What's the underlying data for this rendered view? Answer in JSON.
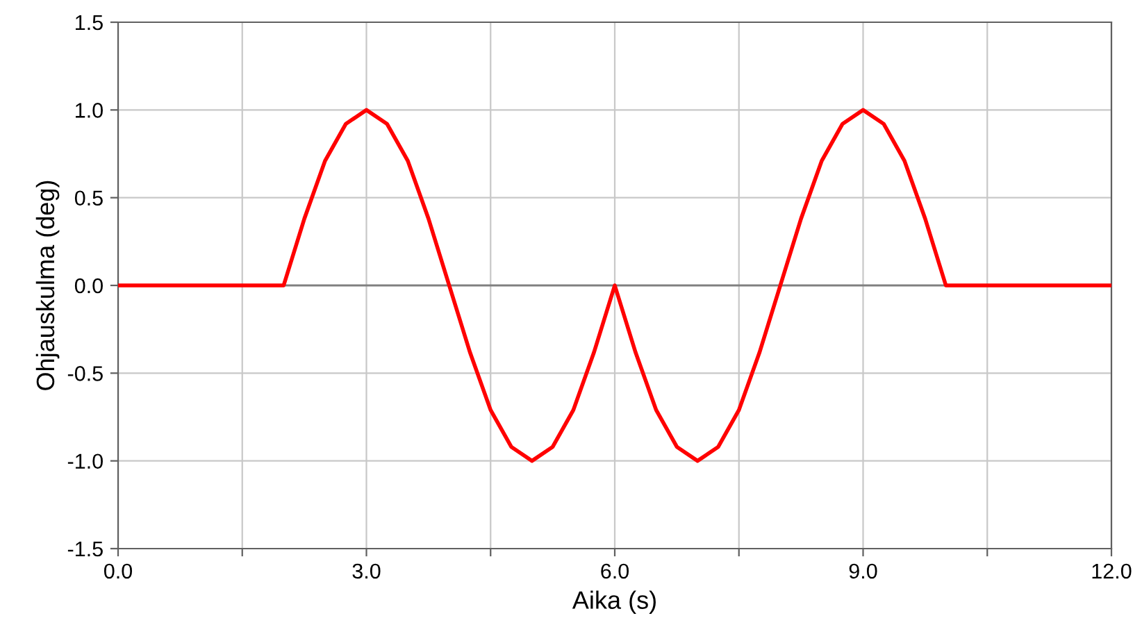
{
  "chart_data": {
    "type": "line",
    "xlabel": "Aika (s)",
    "ylabel": "Ohjauskulma (deg)",
    "x": [
      0,
      2,
      2.25,
      2.5,
      2.75,
      3,
      3.25,
      3.5,
      3.75,
      4,
      4.25,
      4.5,
      4.75,
      5,
      5.25,
      5.5,
      5.75,
      6,
      6.25,
      6.5,
      6.75,
      7,
      7.25,
      7.5,
      7.75,
      8,
      8.25,
      8.5,
      8.75,
      9,
      9.25,
      9.5,
      9.75,
      10,
      12
    ],
    "series": [
      {
        "color": "#ff0000",
        "values": [
          0,
          0,
          0.38,
          0.71,
          0.92,
          1,
          0.92,
          0.71,
          0.38,
          0,
          -0.38,
          -0.71,
          -0.92,
          -1,
          -0.92,
          -0.71,
          -0.38,
          0,
          -0.38,
          -0.71,
          -0.92,
          -1,
          -0.92,
          -0.71,
          -0.38,
          0,
          0.38,
          0.71,
          0.92,
          1,
          0.92,
          0.71,
          0.38,
          0,
          0
        ]
      }
    ],
    "xlim": [
      0,
      12
    ],
    "xticks": [
      {
        "value": 0,
        "label": "0.0"
      },
      {
        "value": 1.5,
        "label": null
      },
      {
        "value": 3,
        "label": "3.0"
      },
      {
        "value": 4.5,
        "label": null
      },
      {
        "value": 6,
        "label": "6.0"
      },
      {
        "value": 7.5,
        "label": null
      },
      {
        "value": 9,
        "label": "9.0"
      },
      {
        "value": 10.5,
        "label": null
      },
      {
        "value": 12,
        "label": "12.0"
      }
    ],
    "ylim": [
      -1.5,
      1.5
    ],
    "yticks": [
      {
        "value": -1.5,
        "label": "-1.5"
      },
      {
        "value": -1,
        "label": "-1.0"
      },
      {
        "value": -0.5,
        "label": "-0.5"
      },
      {
        "value": 0,
        "label": "0.0"
      },
      {
        "value": 0.5,
        "label": "0.5"
      },
      {
        "value": 1,
        "label": "1.0"
      },
      {
        "value": 1.5,
        "label": "1.5"
      }
    ],
    "ref_lines": [
      {
        "axis": "y",
        "value": 0,
        "color": "#808080"
      }
    ],
    "grid": true,
    "legend": false,
    "marker": "none",
    "line_style": "solid"
  }
}
